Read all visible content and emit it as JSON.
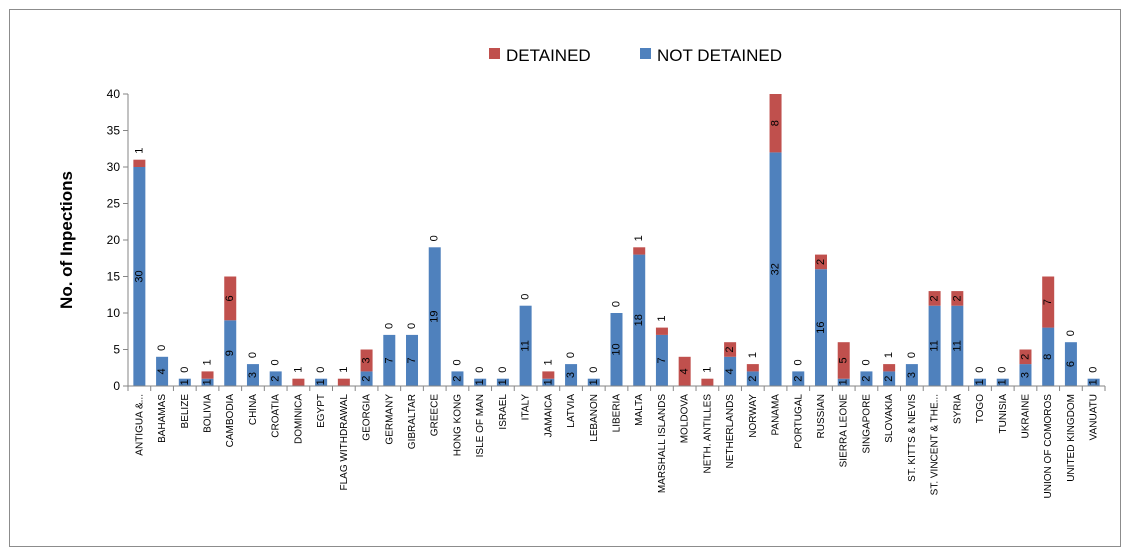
{
  "chart_data": {
    "type": "bar",
    "stacked": true,
    "title": "",
    "xlabel": "",
    "ylabel": "No. of Inpections",
    "ylim": [
      0,
      40
    ],
    "yticks": [
      0,
      5,
      10,
      15,
      20,
      25,
      30,
      35,
      40
    ],
    "grid": false,
    "legend_position": "top",
    "categories": [
      "ANTIGUA &...",
      "BAHAMAS",
      "BELIZE",
      "BOLIVIA",
      "CAMBODIA",
      "CHINA",
      "CROATIA",
      "DOMINICA",
      "EGYPT",
      "FLAG WITHDRAWAL",
      "GEORGIA",
      "GERMANY",
      "GIBRALTAR",
      "GREECE",
      "HONG KONG",
      "ISLE OF MAN",
      "ISRAEL",
      "ITALY",
      "JAMAICA",
      "LATVIA",
      "LEBANON",
      "LIBERIA",
      "MALTA",
      "MARSHALL ISLANDS",
      "MOLDOVA",
      "NETH. ANTILLES",
      "NETHERLANDS",
      "NORWAY",
      "PANAMA",
      "PORTUGAL",
      "RUSSIAN",
      "SIERRA LEONE",
      "SINGAPORE",
      "SLOVAKIA",
      "ST. KITTS & NEVIS",
      "ST. VINCENT & THE...",
      "SYRIA",
      "TOGO",
      "TUNISIA",
      "UKRAINE",
      "UNION OF COMOROS",
      "UNITED KINGDOM",
      "VANUATU"
    ],
    "series": [
      {
        "name": "NOT DETAINED",
        "color": "#4F81BD",
        "values": [
          30,
          4,
          1,
          1,
          9,
          3,
          2,
          0,
          1,
          0,
          2,
          7,
          7,
          19,
          2,
          1,
          1,
          11,
          1,
          3,
          1,
          10,
          18,
          7,
          0,
          0,
          4,
          2,
          32,
          2,
          16,
          1,
          2,
          2,
          3,
          11,
          11,
          1,
          1,
          3,
          8,
          6,
          1
        ]
      },
      {
        "name": "DETAINED",
        "color": "#C0504D",
        "values": [
          1,
          0,
          0,
          1,
          6,
          0,
          0,
          1,
          0,
          1,
          3,
          0,
          0,
          0,
          0,
          0,
          0,
          0,
          1,
          0,
          0,
          0,
          1,
          1,
          4,
          1,
          2,
          1,
          8,
          0,
          2,
          5,
          0,
          1,
          0,
          2,
          2,
          0,
          0,
          2,
          7,
          0,
          0
        ]
      }
    ]
  }
}
